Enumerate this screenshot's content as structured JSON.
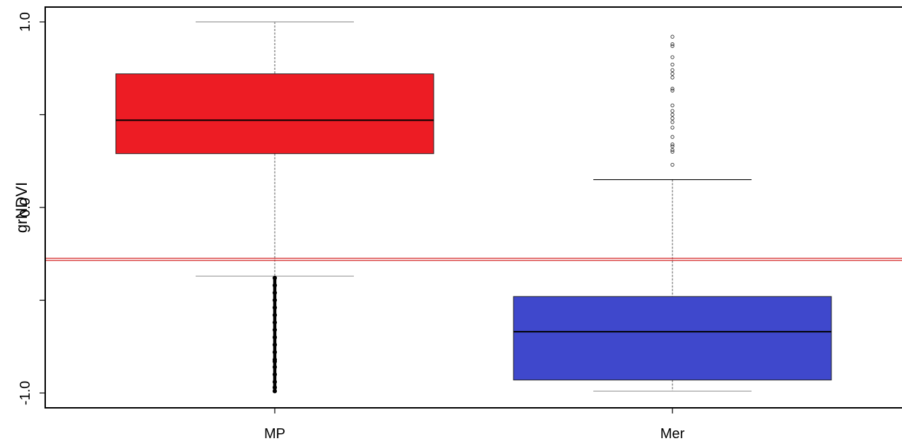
{
  "chart_data": {
    "type": "boxplot",
    "ylabel": "grNDVI",
    "yticks": [
      -1.0,
      -0.5,
      0.0,
      0.5,
      1.0
    ],
    "ytick_labels": [
      "-1.0",
      "",
      "0.0",
      "",
      "1.0"
    ],
    "ylim": [
      -1.08,
      1.08
    ],
    "categories": [
      "MP",
      "Mer"
    ],
    "boxes": [
      {
        "name": "MP",
        "color": "#ed1c24",
        "whisker_low": -0.37,
        "q1": 0.29,
        "median": 0.47,
        "q3": 0.72,
        "whisker_high": 1.0,
        "outliers": [
          -0.38,
          -0.42,
          -0.46,
          -0.5,
          -0.54,
          -0.58,
          -0.62,
          -0.66,
          -0.7,
          -0.74,
          -0.78,
          -0.82,
          -0.83,
          -0.86,
          -0.9,
          -0.94,
          -0.97,
          -0.99
        ]
      },
      {
        "name": "Mer",
        "color": "#3f48cc",
        "whisker_low": -0.99,
        "q1": -0.93,
        "median": -0.67,
        "q3": -0.48,
        "whisker_high": 0.15,
        "outliers": [
          0.23,
          0.3,
          0.31,
          0.33,
          0.34,
          0.38,
          0.43,
          0.46,
          0.48,
          0.5,
          0.52,
          0.55,
          0.63,
          0.64,
          0.7,
          0.72,
          0.74,
          0.77,
          0.81,
          0.87,
          0.88,
          0.92
        ]
      }
    ],
    "reference_line": {
      "y": -0.28,
      "color": "#d42020"
    }
  }
}
